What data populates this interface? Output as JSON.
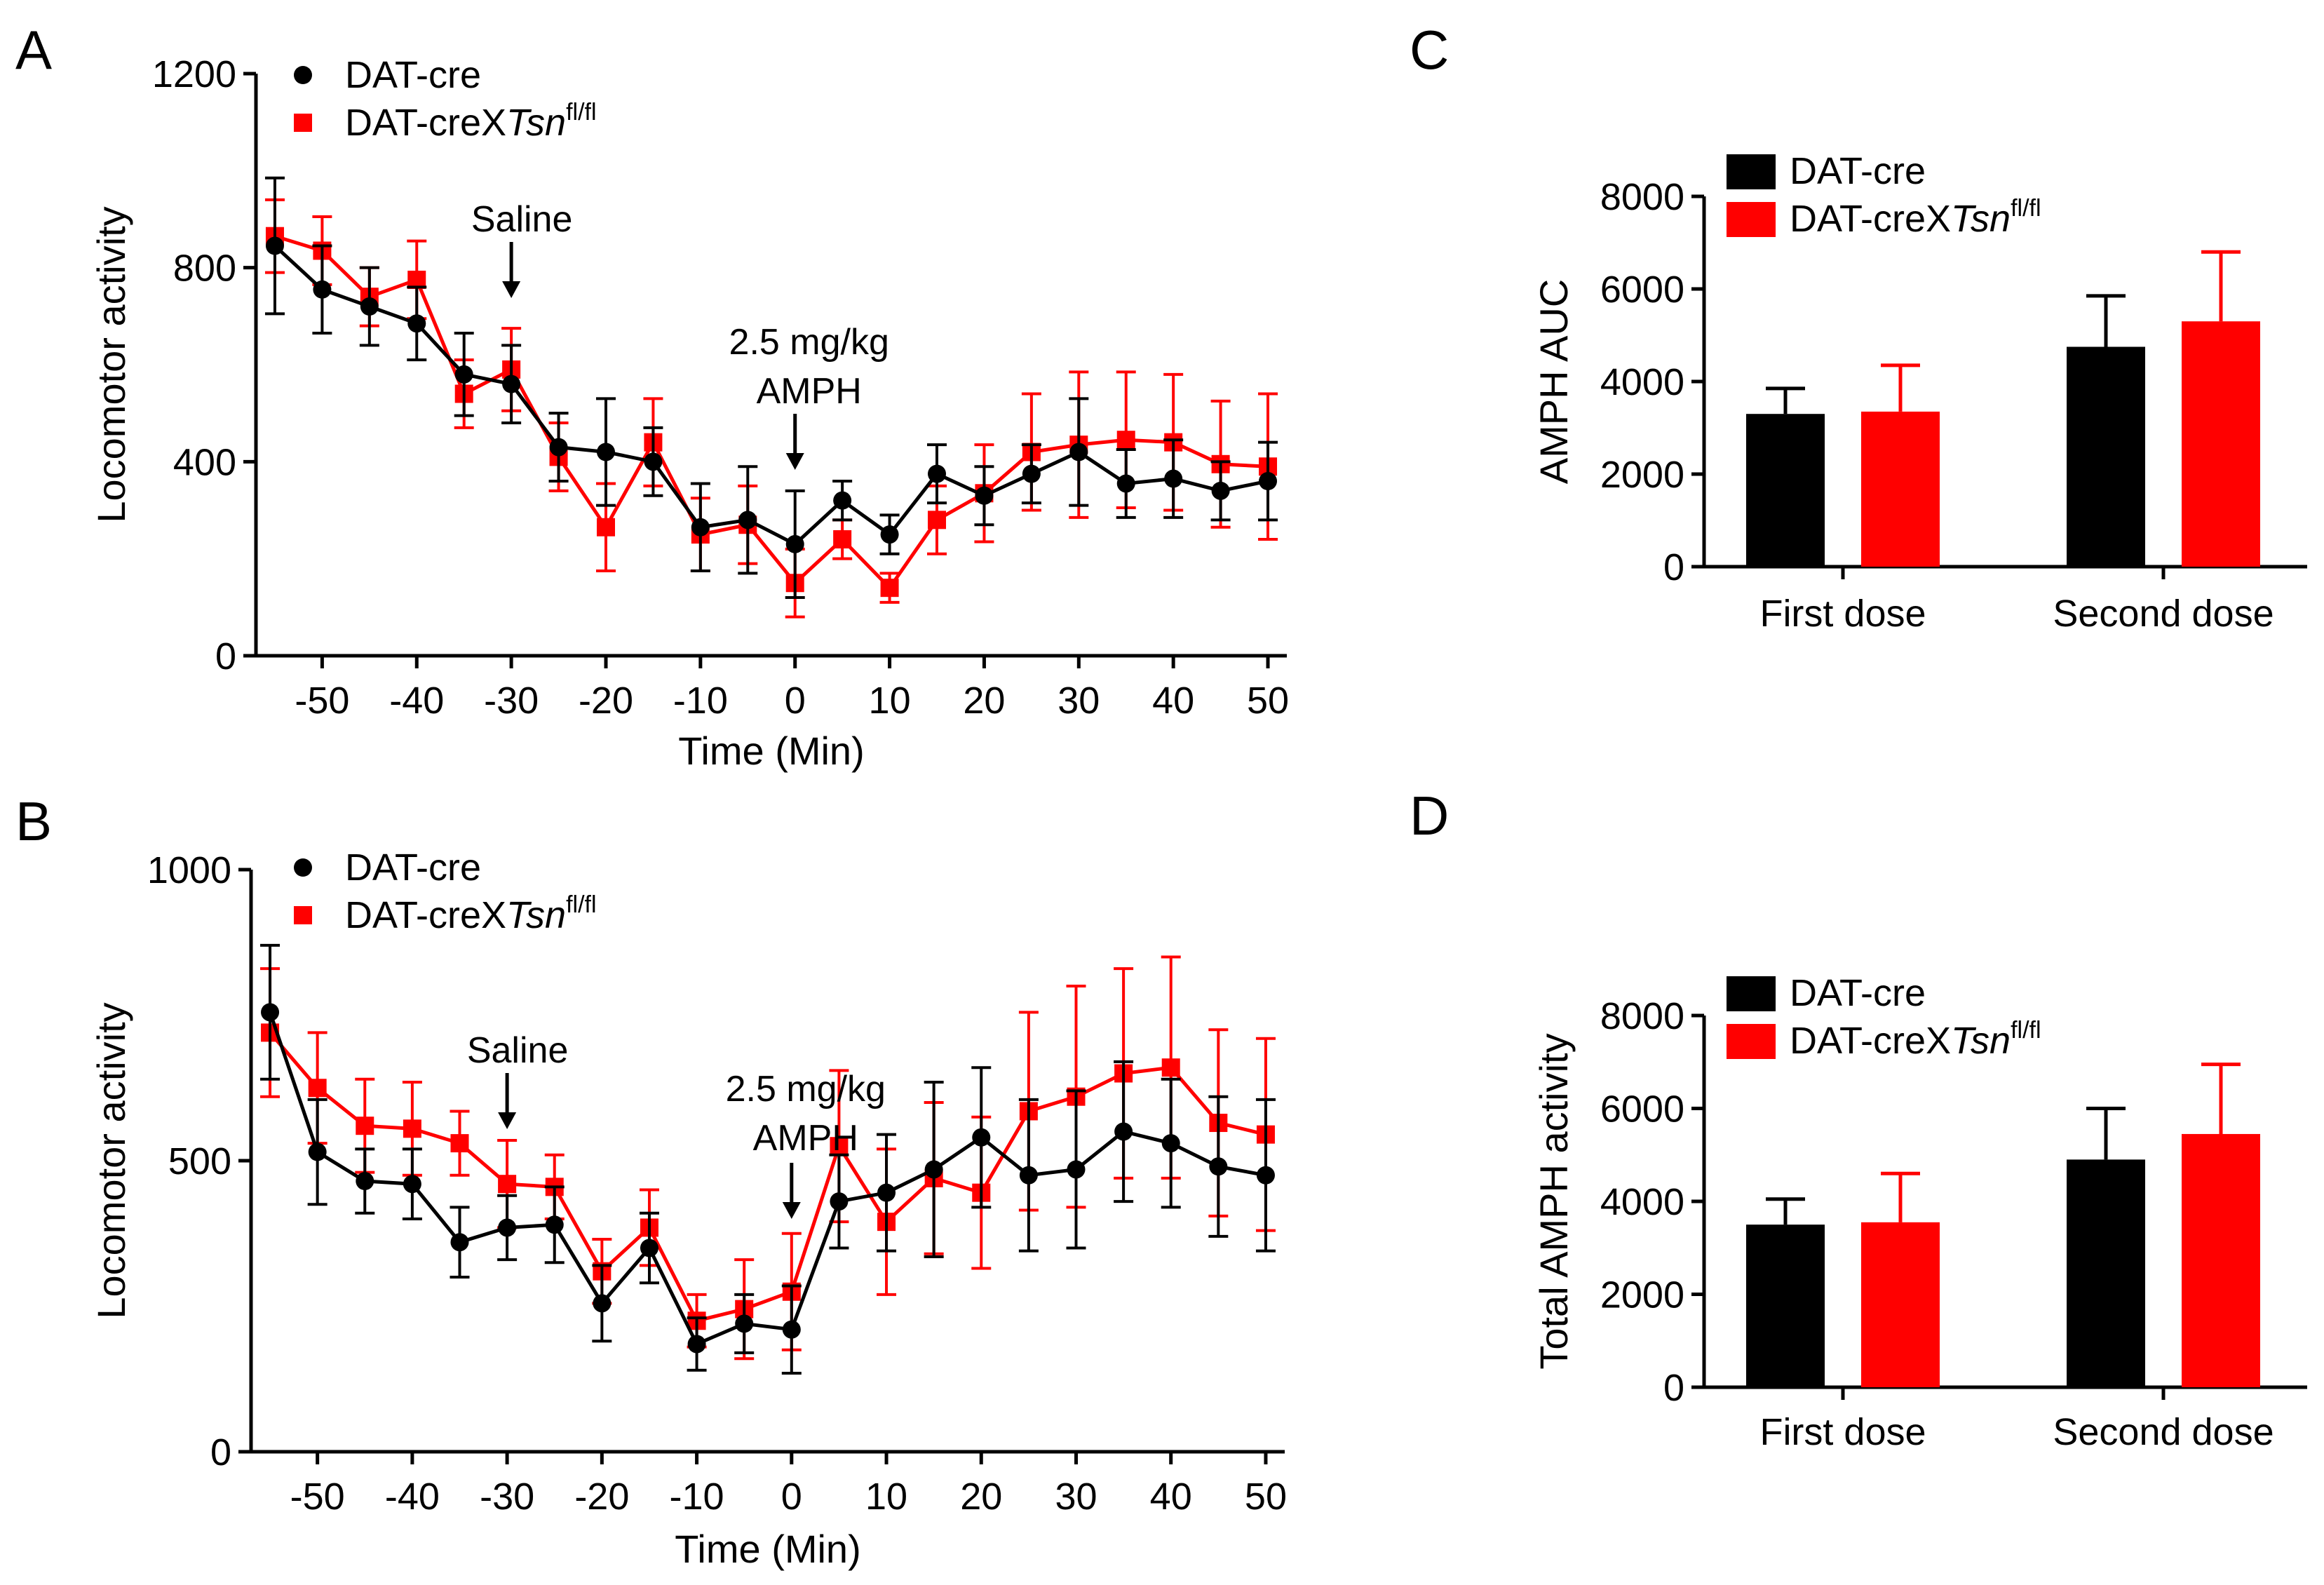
{
  "chart_data": [
    {
      "panel": "A",
      "type": "line",
      "xlabel": "Time (Min)",
      "ylabel": "Locomotor activity",
      "ylim": [
        0,
        1200
      ],
      "yticks": [
        0,
        400,
        800,
        1200
      ],
      "xlim": [
        -57,
        52
      ],
      "xticks": [
        -50,
        -40,
        -30,
        -20,
        -10,
        0,
        10,
        20,
        30,
        40,
        50
      ],
      "annotations": [
        {
          "lines": [
            "Saline"
          ],
          "x": -30
        },
        {
          "lines": [
            "2.5 mg/kg",
            "AMPH"
          ],
          "x": 0
        }
      ],
      "series": [
        {
          "name": "DAT-cre",
          "sup": "",
          "marker": "circle",
          "color": "#000000",
          "x": [
            -55,
            -50,
            -45,
            -40,
            -35,
            -30,
            -25,
            -20,
            -15,
            -10,
            -5,
            0,
            5,
            10,
            15,
            20,
            25,
            30,
            35,
            40,
            45,
            50
          ],
          "values": [
            845,
            755,
            720,
            685,
            580,
            560,
            430,
            420,
            400,
            265,
            280,
            230,
            320,
            250,
            375,
            330,
            375,
            420,
            355,
            365,
            340,
            360
          ],
          "errors": [
            140,
            90,
            80,
            75,
            85,
            80,
            70,
            110,
            70,
            90,
            110,
            110,
            40,
            40,
            60,
            60,
            60,
            110,
            70,
            80,
            60,
            80
          ]
        },
        {
          "name": "DAT-creX",
          "name_italic": "Tsn",
          "sup": "fl/fl",
          "marker": "square",
          "color": "#ff0000",
          "x": [
            -55,
            -50,
            -45,
            -40,
            -35,
            -30,
            -25,
            -20,
            -15,
            -10,
            -5,
            0,
            5,
            10,
            15,
            20,
            25,
            30,
            35,
            40,
            45,
            50
          ],
          "values": [
            865,
            835,
            740,
            775,
            540,
            590,
            410,
            265,
            440,
            250,
            270,
            150,
            240,
            140,
            280,
            335,
            420,
            435,
            445,
            440,
            395,
            390
          ],
          "errors": [
            75,
            70,
            60,
            80,
            70,
            85,
            70,
            90,
            90,
            75,
            80,
            70,
            40,
            30,
            70,
            100,
            120,
            150,
            140,
            140,
            130,
            150
          ]
        }
      ]
    },
    {
      "panel": "B",
      "type": "line",
      "xlabel": "Time (Min)",
      "ylabel": "Locomotor activity",
      "ylim": [
        0,
        1000
      ],
      "yticks": [
        0,
        500,
        1000
      ],
      "xlim": [
        -57,
        52
      ],
      "xticks": [
        -50,
        -40,
        -30,
        -20,
        -10,
        0,
        10,
        20,
        30,
        40,
        50
      ],
      "annotations": [
        {
          "lines": [
            "Saline"
          ],
          "x": -30
        },
        {
          "lines": [
            "2.5 mg/kg",
            "AMPH"
          ],
          "x": 0
        }
      ],
      "series": [
        {
          "name": "DAT-cre",
          "sup": "",
          "marker": "circle",
          "color": "#000000",
          "x": [
            -55,
            -50,
            -45,
            -40,
            -35,
            -30,
            -25,
            -20,
            -15,
            -10,
            -5,
            0,
            5,
            10,
            15,
            20,
            25,
            30,
            35,
            40,
            45,
            50
          ],
          "values": [
            755,
            515,
            465,
            460,
            360,
            385,
            390,
            255,
            350,
            185,
            220,
            210,
            430,
            445,
            485,
            540,
            475,
            485,
            550,
            530,
            490,
            475
          ],
          "errors": [
            115,
            90,
            55,
            60,
            60,
            55,
            65,
            65,
            60,
            45,
            50,
            75,
            80,
            100,
            150,
            120,
            130,
            135,
            120,
            110,
            120,
            130
          ]
        },
        {
          "name": "DAT-creX",
          "name_italic": "Tsn",
          "sup": "fl/fl",
          "marker": "square",
          "color": "#ff0000",
          "x": [
            -55,
            -50,
            -45,
            -40,
            -35,
            -30,
            -25,
            -20,
            -15,
            -10,
            -5,
            0,
            5,
            10,
            15,
            20,
            25,
            30,
            35,
            40,
            45,
            50
          ],
          "values": [
            720,
            625,
            560,
            555,
            530,
            460,
            455,
            310,
            385,
            225,
            245,
            275,
            525,
            395,
            470,
            445,
            585,
            610,
            650,
            660,
            565,
            545
          ],
          "errors": [
            110,
            95,
            80,
            80,
            55,
            75,
            55,
            55,
            65,
            45,
            85,
            100,
            130,
            125,
            130,
            130,
            170,
            190,
            180,
            190,
            160,
            165
          ]
        }
      ]
    },
    {
      "panel": "C",
      "type": "bar",
      "ylabel": "AMPH AUC",
      "ylim": [
        0,
        8000
      ],
      "yticks": [
        0,
        2000,
        4000,
        6000,
        8000
      ],
      "categories": [
        "First dose",
        "Second dose"
      ],
      "series": [
        {
          "name": "DAT-cre",
          "sup": "",
          "color": "#000000",
          "values": [
            3300,
            4750
          ],
          "errors": [
            550,
            1100
          ]
        },
        {
          "name": "DAT-creX",
          "name_italic": "Tsn",
          "sup": "fl/fl",
          "color": "#ff0000",
          "values": [
            3350,
            5300
          ],
          "errors": [
            1000,
            1500
          ]
        }
      ]
    },
    {
      "panel": "D",
      "type": "bar",
      "ylabel": "Total AMPH activity",
      "ylim": [
        0,
        8000
      ],
      "yticks": [
        0,
        2000,
        4000,
        6000,
        8000
      ],
      "categories": [
        "First dose",
        "Second dose"
      ],
      "series": [
        {
          "name": "DAT-cre",
          "sup": "",
          "color": "#000000",
          "values": [
            3500,
            4900
          ],
          "errors": [
            550,
            1100
          ]
        },
        {
          "name": "DAT-creX",
          "name_italic": "Tsn",
          "sup": "fl/fl",
          "color": "#ff0000",
          "values": [
            3550,
            5450
          ],
          "errors": [
            1050,
            1500
          ]
        }
      ]
    }
  ]
}
